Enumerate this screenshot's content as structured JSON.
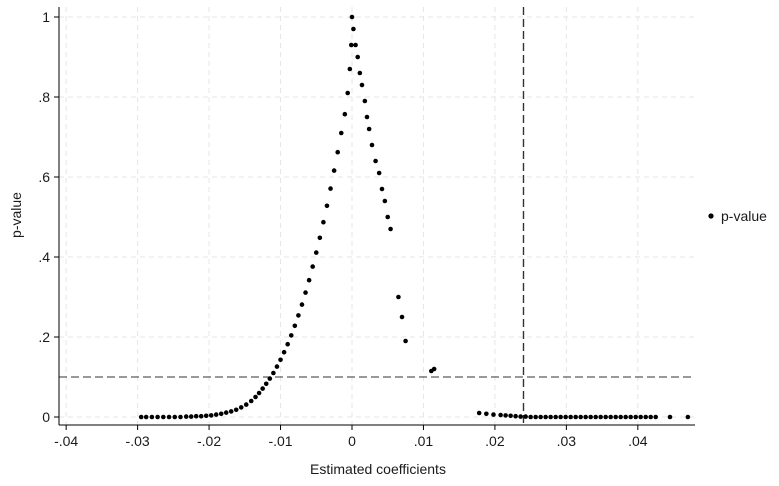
{
  "chart_data": {
    "type": "scatter",
    "title": "",
    "xlabel": "Estimated coefficients",
    "ylabel": "p-value",
    "xlim": [
      -0.041,
      0.048
    ],
    "ylim": [
      -0.02,
      1.025
    ],
    "x_ticks": [
      {
        "value": -0.04,
        "label": "-.04"
      },
      {
        "value": -0.03,
        "label": "-.03"
      },
      {
        "value": -0.02,
        "label": "-.02"
      },
      {
        "value": -0.01,
        "label": "-.01"
      },
      {
        "value": 0,
        "label": "0"
      },
      {
        "value": 0.01,
        "label": ".01"
      },
      {
        "value": 0.02,
        "label": ".02"
      },
      {
        "value": 0.03,
        "label": ".03"
      },
      {
        "value": 0.04,
        "label": ".04"
      }
    ],
    "y_ticks": [
      {
        "value": 0,
        "label": "0"
      },
      {
        "value": 0.2,
        "label": ".2"
      },
      {
        "value": 0.4,
        "label": ".4"
      },
      {
        "value": 0.6,
        "label": ".6"
      },
      {
        "value": 0.8,
        "label": ".8"
      },
      {
        "value": 1,
        "label": "1"
      }
    ],
    "grid": true,
    "reference_lines": {
      "vertical_x": 0.024,
      "horizontal_y": 0.1
    },
    "legend": {
      "position": "right",
      "entries": [
        "p-value"
      ]
    },
    "series": [
      {
        "name": "p-value",
        "color": "#000000",
        "points": [
          {
            "x": -0.0295,
            "y": 0.0
          },
          {
            "x": -0.0288,
            "y": 0.0
          },
          {
            "x": -0.028,
            "y": 0.0
          },
          {
            "x": -0.0272,
            "y": 0.0
          },
          {
            "x": -0.0264,
            "y": 0.0
          },
          {
            "x": -0.0256,
            "y": 0.0
          },
          {
            "x": -0.0248,
            "y": 0.0
          },
          {
            "x": -0.024,
            "y": 0.0
          },
          {
            "x": -0.0232,
            "y": 0.001
          },
          {
            "x": -0.0225,
            "y": 0.001
          },
          {
            "x": -0.0218,
            "y": 0.002
          },
          {
            "x": -0.0211,
            "y": 0.002
          },
          {
            "x": -0.0204,
            "y": 0.003
          },
          {
            "x": -0.0197,
            "y": 0.004
          },
          {
            "x": -0.019,
            "y": 0.006
          },
          {
            "x": -0.0183,
            "y": 0.008
          },
          {
            "x": -0.0176,
            "y": 0.011
          },
          {
            "x": -0.0169,
            "y": 0.014
          },
          {
            "x": -0.0162,
            "y": 0.018
          },
          {
            "x": -0.0155,
            "y": 0.024
          },
          {
            "x": -0.0148,
            "y": 0.031
          },
          {
            "x": -0.0141,
            "y": 0.04
          },
          {
            "x": -0.0135,
            "y": 0.05
          },
          {
            "x": -0.013,
            "y": 0.06
          },
          {
            "x": -0.0125,
            "y": 0.071
          },
          {
            "x": -0.012,
            "y": 0.083
          },
          {
            "x": -0.0115,
            "y": 0.096
          },
          {
            "x": -0.011,
            "y": 0.11
          },
          {
            "x": -0.0105,
            "y": 0.126
          },
          {
            "x": -0.01,
            "y": 0.143
          },
          {
            "x": -0.0095,
            "y": 0.162
          },
          {
            "x": -0.009,
            "y": 0.182
          },
          {
            "x": -0.0085,
            "y": 0.204
          },
          {
            "x": -0.008,
            "y": 0.228
          },
          {
            "x": -0.0075,
            "y": 0.254
          },
          {
            "x": -0.007,
            "y": 0.281
          },
          {
            "x": -0.0065,
            "y": 0.311
          },
          {
            "x": -0.006,
            "y": 0.342
          },
          {
            "x": -0.0055,
            "y": 0.376
          },
          {
            "x": -0.005,
            "y": 0.411
          },
          {
            "x": -0.0045,
            "y": 0.448
          },
          {
            "x": -0.004,
            "y": 0.487
          },
          {
            "x": -0.0035,
            "y": 0.528
          },
          {
            "x": -0.003,
            "y": 0.571
          },
          {
            "x": -0.0025,
            "y": 0.616
          },
          {
            "x": -0.002,
            "y": 0.662
          },
          {
            "x": -0.0015,
            "y": 0.71
          },
          {
            "x": -0.001,
            "y": 0.757
          },
          {
            "x": -0.0006,
            "y": 0.81
          },
          {
            "x": -0.0003,
            "y": 0.87
          },
          {
            "x": -0.0001,
            "y": 0.93
          },
          {
            "x": 0.0,
            "y": 1.0
          },
          {
            "x": 0.0002,
            "y": 0.97
          },
          {
            "x": 0.0005,
            "y": 0.93
          },
          {
            "x": 0.0008,
            "y": 0.9
          },
          {
            "x": 0.0011,
            "y": 0.86
          },
          {
            "x": 0.0014,
            "y": 0.83
          },
          {
            "x": 0.0018,
            "y": 0.79
          },
          {
            "x": 0.0021,
            "y": 0.75
          },
          {
            "x": 0.0024,
            "y": 0.72
          },
          {
            "x": 0.0028,
            "y": 0.68
          },
          {
            "x": 0.0033,
            "y": 0.64
          },
          {
            "x": 0.0038,
            "y": 0.61
          },
          {
            "x": 0.0042,
            "y": 0.57
          },
          {
            "x": 0.0046,
            "y": 0.54
          },
          {
            "x": 0.005,
            "y": 0.5
          },
          {
            "x": 0.0054,
            "y": 0.47
          },
          {
            "x": 0.0065,
            "y": 0.3
          },
          {
            "x": 0.007,
            "y": 0.25
          },
          {
            "x": 0.0075,
            "y": 0.19
          },
          {
            "x": 0.0111,
            "y": 0.115
          },
          {
            "x": 0.0115,
            "y": 0.12
          },
          {
            "x": 0.0178,
            "y": 0.01
          },
          {
            "x": 0.0188,
            "y": 0.008
          },
          {
            "x": 0.0198,
            "y": 0.006
          },
          {
            "x": 0.0208,
            "y": 0.005
          },
          {
            "x": 0.0215,
            "y": 0.004
          },
          {
            "x": 0.0222,
            "y": 0.003
          },
          {
            "x": 0.0229,
            "y": 0.002
          },
          {
            "x": 0.0236,
            "y": 0.001
          },
          {
            "x": 0.0243,
            "y": 0.001
          },
          {
            "x": 0.025,
            "y": 0.0
          },
          {
            "x": 0.0257,
            "y": 0.0
          },
          {
            "x": 0.0264,
            "y": 0.0
          },
          {
            "x": 0.0271,
            "y": 0.0
          },
          {
            "x": 0.0278,
            "y": 0.0
          },
          {
            "x": 0.0285,
            "y": 0.0
          },
          {
            "x": 0.0292,
            "y": 0.0
          },
          {
            "x": 0.0299,
            "y": 0.0
          },
          {
            "x": 0.0306,
            "y": 0.0
          },
          {
            "x": 0.0313,
            "y": 0.0
          },
          {
            "x": 0.032,
            "y": 0.0
          },
          {
            "x": 0.0327,
            "y": 0.0
          },
          {
            "x": 0.0334,
            "y": 0.0
          },
          {
            "x": 0.0341,
            "y": 0.0
          },
          {
            "x": 0.0348,
            "y": 0.0
          },
          {
            "x": 0.0355,
            "y": 0.0
          },
          {
            "x": 0.0362,
            "y": 0.0
          },
          {
            "x": 0.0369,
            "y": 0.0
          },
          {
            "x": 0.0376,
            "y": 0.0
          },
          {
            "x": 0.0383,
            "y": 0.0
          },
          {
            "x": 0.039,
            "y": 0.0
          },
          {
            "x": 0.0397,
            "y": 0.0
          },
          {
            "x": 0.0404,
            "y": 0.0
          },
          {
            "x": 0.0411,
            "y": 0.0
          },
          {
            "x": 0.0418,
            "y": 0.0
          },
          {
            "x": 0.0425,
            "y": 0.0
          },
          {
            "x": 0.0445,
            "y": 0.0
          },
          {
            "x": 0.047,
            "y": 0.0
          }
        ]
      }
    ]
  }
}
